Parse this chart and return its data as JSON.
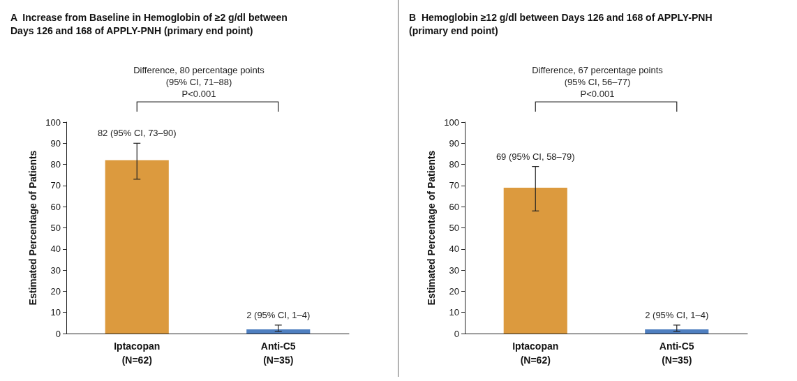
{
  "chart_data": [
    {
      "type": "bar",
      "title": "A  Increase from Baseline in Hemoglobin of ≥2 g/dl between\nDays 126 and 168 of APPLY-PNH (primary end point)",
      "ylabel": "Estimated Percentage of Patients",
      "categories": [
        "Iptacopan\n(N=62)",
        "Anti-C5\n(N=35)"
      ],
      "values": [
        82,
        2
      ],
      "colors": [
        "#dc9a3e",
        "#4f7fc0"
      ],
      "errors": [
        [
          73,
          90
        ],
        [
          1,
          4
        ]
      ],
      "value_labels": [
        "82 (95% CI, 73–90)",
        "2 (95% CI, 1–4)"
      ],
      "annotations": [
        "Difference, 80 percentage points\n(95% CI, 71–88)\nP<0.001"
      ],
      "ylim": [
        0,
        100
      ],
      "yticks": [
        0,
        10,
        20,
        30,
        40,
        50,
        60,
        70,
        80,
        90,
        100
      ],
      "grid": false
    },
    {
      "type": "bar",
      "title": "B  Hemoglobin ≥12 g/dl between Days 126 and 168 of APPLY-PNH\n(primary end point)",
      "ylabel": "Estimated Percentage of Patients",
      "categories": [
        "Iptacopan\n(N=62)",
        "Anti-C5\n(N=35)"
      ],
      "values": [
        69,
        2
      ],
      "colors": [
        "#dc9a3e",
        "#4f7fc0"
      ],
      "errors": [
        [
          58,
          79
        ],
        [
          1,
          4
        ]
      ],
      "value_labels": [
        "69 (95% CI, 58–79)",
        "2 (95% CI, 1–4)"
      ],
      "annotations": [
        "Difference, 67 percentage points\n(95% CI, 56–77)\nP<0.001"
      ],
      "ylim": [
        0,
        100
      ],
      "yticks": [
        0,
        10,
        20,
        30,
        40,
        50,
        60,
        70,
        80,
        90,
        100
      ],
      "grid": false
    }
  ]
}
